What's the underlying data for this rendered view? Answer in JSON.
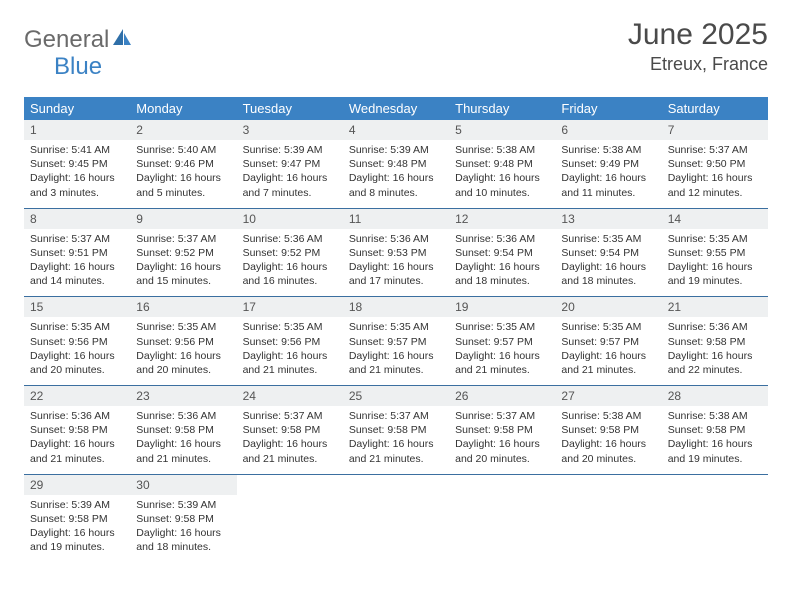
{
  "brand": {
    "part1": "General",
    "part2": "Blue"
  },
  "title": "June 2025",
  "location": "Etreux, France",
  "colors": {
    "header_bg": "#3b82c4",
    "header_text": "#ffffff",
    "daynum_bg": "#eef0f1",
    "divider": "#3b6fa0",
    "text": "#333333",
    "brand_gray": "#6a6a6a",
    "brand_blue": "#3b82c4"
  },
  "weekdays": [
    "Sunday",
    "Monday",
    "Tuesday",
    "Wednesday",
    "Thursday",
    "Friday",
    "Saturday"
  ],
  "weeks": [
    [
      {
        "n": "1",
        "sr": "5:41 AM",
        "ss": "9:45 PM",
        "dl": "16 hours and 3 minutes."
      },
      {
        "n": "2",
        "sr": "5:40 AM",
        "ss": "9:46 PM",
        "dl": "16 hours and 5 minutes."
      },
      {
        "n": "3",
        "sr": "5:39 AM",
        "ss": "9:47 PM",
        "dl": "16 hours and 7 minutes."
      },
      {
        "n": "4",
        "sr": "5:39 AM",
        "ss": "9:48 PM",
        "dl": "16 hours and 8 minutes."
      },
      {
        "n": "5",
        "sr": "5:38 AM",
        "ss": "9:48 PM",
        "dl": "16 hours and 10 minutes."
      },
      {
        "n": "6",
        "sr": "5:38 AM",
        "ss": "9:49 PM",
        "dl": "16 hours and 11 minutes."
      },
      {
        "n": "7",
        "sr": "5:37 AM",
        "ss": "9:50 PM",
        "dl": "16 hours and 12 minutes."
      }
    ],
    [
      {
        "n": "8",
        "sr": "5:37 AM",
        "ss": "9:51 PM",
        "dl": "16 hours and 14 minutes."
      },
      {
        "n": "9",
        "sr": "5:37 AM",
        "ss": "9:52 PM",
        "dl": "16 hours and 15 minutes."
      },
      {
        "n": "10",
        "sr": "5:36 AM",
        "ss": "9:52 PM",
        "dl": "16 hours and 16 minutes."
      },
      {
        "n": "11",
        "sr": "5:36 AM",
        "ss": "9:53 PM",
        "dl": "16 hours and 17 minutes."
      },
      {
        "n": "12",
        "sr": "5:36 AM",
        "ss": "9:54 PM",
        "dl": "16 hours and 18 minutes."
      },
      {
        "n": "13",
        "sr": "5:35 AM",
        "ss": "9:54 PM",
        "dl": "16 hours and 18 minutes."
      },
      {
        "n": "14",
        "sr": "5:35 AM",
        "ss": "9:55 PM",
        "dl": "16 hours and 19 minutes."
      }
    ],
    [
      {
        "n": "15",
        "sr": "5:35 AM",
        "ss": "9:56 PM",
        "dl": "16 hours and 20 minutes."
      },
      {
        "n": "16",
        "sr": "5:35 AM",
        "ss": "9:56 PM",
        "dl": "16 hours and 20 minutes."
      },
      {
        "n": "17",
        "sr": "5:35 AM",
        "ss": "9:56 PM",
        "dl": "16 hours and 21 minutes."
      },
      {
        "n": "18",
        "sr": "5:35 AM",
        "ss": "9:57 PM",
        "dl": "16 hours and 21 minutes."
      },
      {
        "n": "19",
        "sr": "5:35 AM",
        "ss": "9:57 PM",
        "dl": "16 hours and 21 minutes."
      },
      {
        "n": "20",
        "sr": "5:35 AM",
        "ss": "9:57 PM",
        "dl": "16 hours and 21 minutes."
      },
      {
        "n": "21",
        "sr": "5:36 AM",
        "ss": "9:58 PM",
        "dl": "16 hours and 22 minutes."
      }
    ],
    [
      {
        "n": "22",
        "sr": "5:36 AM",
        "ss": "9:58 PM",
        "dl": "16 hours and 21 minutes."
      },
      {
        "n": "23",
        "sr": "5:36 AM",
        "ss": "9:58 PM",
        "dl": "16 hours and 21 minutes."
      },
      {
        "n": "24",
        "sr": "5:37 AM",
        "ss": "9:58 PM",
        "dl": "16 hours and 21 minutes."
      },
      {
        "n": "25",
        "sr": "5:37 AM",
        "ss": "9:58 PM",
        "dl": "16 hours and 21 minutes."
      },
      {
        "n": "26",
        "sr": "5:37 AM",
        "ss": "9:58 PM",
        "dl": "16 hours and 20 minutes."
      },
      {
        "n": "27",
        "sr": "5:38 AM",
        "ss": "9:58 PM",
        "dl": "16 hours and 20 minutes."
      },
      {
        "n": "28",
        "sr": "5:38 AM",
        "ss": "9:58 PM",
        "dl": "16 hours and 19 minutes."
      }
    ],
    [
      {
        "n": "29",
        "sr": "5:39 AM",
        "ss": "9:58 PM",
        "dl": "16 hours and 19 minutes."
      },
      {
        "n": "30",
        "sr": "5:39 AM",
        "ss": "9:58 PM",
        "dl": "16 hours and 18 minutes."
      },
      null,
      null,
      null,
      null,
      null
    ]
  ],
  "labels": {
    "sunrise": "Sunrise:",
    "sunset": "Sunset:",
    "daylight": "Daylight:"
  }
}
